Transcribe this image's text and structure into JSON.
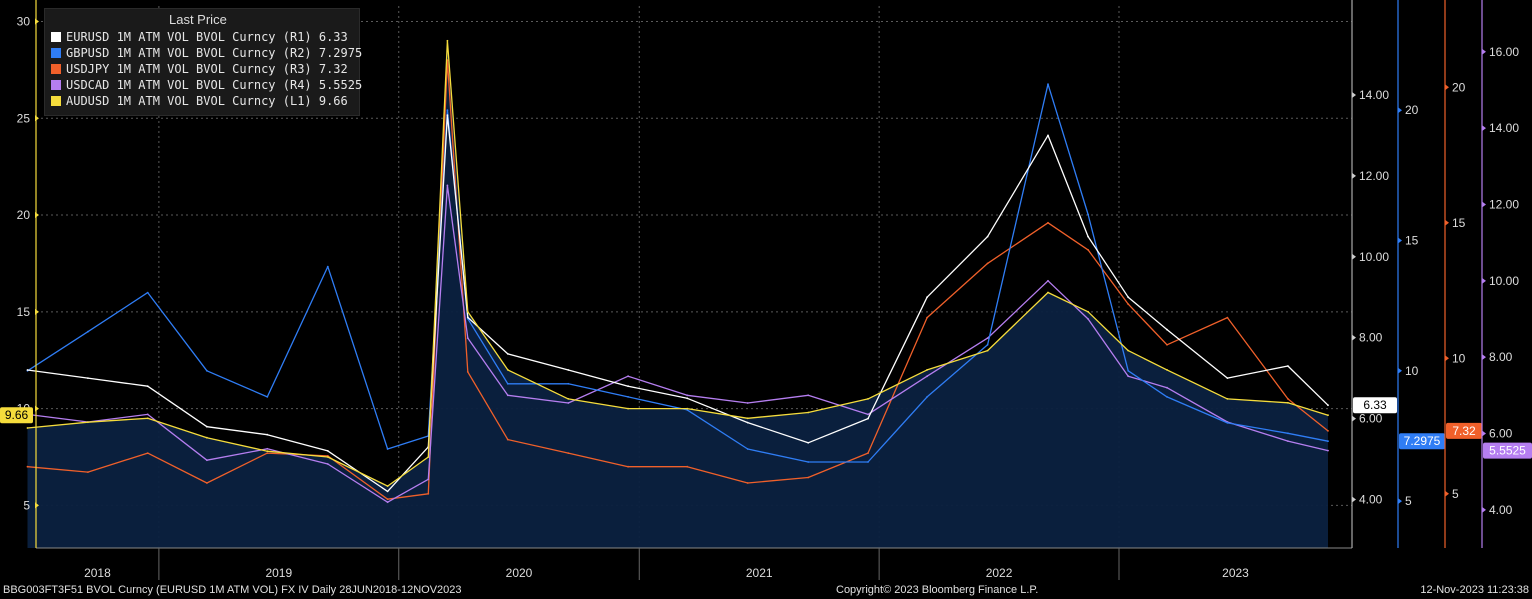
{
  "chart_data": {
    "type": "line",
    "legend": {
      "title": "Last Price",
      "placement": "top-left",
      "entries": [
        {
          "label": "EURUSD 1M ATM VOL BVOL Curncy  (R1) 6.33",
          "color": "#ffffff"
        },
        {
          "label": "GBPUSD 1M ATM VOL BVOL Curncy  (R2) 7.2975",
          "color": "#2f7df5"
        },
        {
          "label": "USDJPY 1M ATM VOL BVOL Curncy  (R3) 7.32",
          "color": "#f0602a"
        },
        {
          "label": "USDCAD 1M ATM VOL BVOL Curncy  (R4) 5.5525",
          "color": "#b57ef0"
        },
        {
          "label": "AUDUSD 1M ATM VOL BVOL Curncy  (L1) 9.66",
          "color": "#f5dc3c"
        }
      ]
    },
    "x": [
      "2018-06",
      "2018-09",
      "2018-12",
      "2019-03",
      "2019-06",
      "2019-09",
      "2019-12",
      "2020-02",
      "2020-03",
      "2020-04",
      "2020-06",
      "2020-09",
      "2020-12",
      "2021-03",
      "2021-06",
      "2021-09",
      "2021-12",
      "2022-03",
      "2022-06",
      "2022-09",
      "2022-11",
      "2023-01",
      "2023-03",
      "2023-06",
      "2023-09",
      "2023-11"
    ],
    "x_ticks": [
      "2018",
      "2019",
      "2020",
      "2021",
      "2022",
      "2023"
    ],
    "series": [
      {
        "name": "AUDUSD 1M ATM VOL BVOL Curncy",
        "axis": "L1",
        "color": "#f5dc3c",
        "values": [
          9.0,
          9.3,
          9.5,
          8.5,
          7.8,
          7.5,
          6.0,
          7.5,
          29.0,
          15.0,
          12.0,
          10.5,
          10.0,
          10.0,
          9.5,
          9.8,
          10.5,
          12.0,
          13.0,
          16.0,
          15.0,
          13.0,
          12.0,
          10.5,
          10.3,
          9.66
        ]
      },
      {
        "name": "EURUSD 1M ATM VOL BVOL Curncy",
        "axis": "R1",
        "color": "#ffffff",
        "values": [
          7.2,
          7.0,
          6.8,
          5.8,
          5.6,
          5.2,
          4.2,
          5.3,
          13.5,
          8.5,
          7.6,
          7.2,
          6.8,
          6.5,
          5.9,
          5.4,
          6.0,
          9.0,
          10.5,
          13.0,
          10.5,
          9.0,
          8.2,
          7.0,
          7.3,
          6.33
        ]
      },
      {
        "name": "GBPUSD 1M ATM VOL BVOL Curncy",
        "axis": "R2",
        "color": "#2f7df5",
        "values": [
          10.0,
          11.5,
          13.0,
          10.0,
          9.0,
          14.0,
          7.0,
          7.5,
          20.0,
          12.0,
          9.5,
          9.5,
          9.0,
          8.5,
          7.0,
          6.5,
          6.5,
          9.0,
          11.0,
          21.0,
          16.0,
          10.0,
          9.0,
          8.0,
          7.6,
          7.2975
        ]
      },
      {
        "name": "USDJPY 1M ATM VOL BVOL Curncy",
        "axis": "R3",
        "color": "#f0602a",
        "values": [
          6.0,
          5.8,
          6.5,
          5.4,
          6.5,
          6.4,
          4.8,
          5.0,
          21.0,
          9.5,
          7.0,
          6.5,
          6.0,
          6.0,
          5.4,
          5.6,
          6.5,
          11.5,
          13.5,
          15.0,
          14.0,
          12.0,
          10.5,
          11.5,
          8.5,
          7.32
        ]
      },
      {
        "name": "USDCAD 1M ATM VOL BVOL Curncy",
        "axis": "R4",
        "color": "#b57ef0",
        "values": [
          6.5,
          6.3,
          6.5,
          5.3,
          5.6,
          5.2,
          4.2,
          4.8,
          12.5,
          8.5,
          7.0,
          6.8,
          7.5,
          7.0,
          6.8,
          7.0,
          6.5,
          7.5,
          8.5,
          10.0,
          9.0,
          7.5,
          7.2,
          6.3,
          5.8,
          5.5525
        ]
      }
    ],
    "axes": {
      "L1": {
        "ticks": [
          "5",
          "10",
          "15",
          "20",
          "25",
          "30"
        ],
        "range": [
          2.8,
          30.8
        ],
        "last": "9.66",
        "color": "#f5dc3c"
      },
      "R1": {
        "ticks": [
          "4.00",
          "6.00",
          "8.00",
          "10.00",
          "12.00",
          "14.00"
        ],
        "range": [
          2.8,
          16.2
        ],
        "last": "6.33",
        "color": "#ffffff"
      },
      "R2": {
        "ticks": [
          "5",
          "10",
          "15",
          "20"
        ],
        "range": [
          3.2,
          24.0
        ],
        "last": "7.2975",
        "color": "#2f7df5"
      },
      "R3": {
        "ticks": [
          "5",
          "10",
          "15",
          "20"
        ],
        "range": [
          3.0,
          23.0
        ],
        "last": "7.32",
        "color": "#f0602a"
      },
      "R4": {
        "ticks": [
          "4.00",
          "6.00",
          "8.00",
          "10.00",
          "12.00",
          "14.00",
          "16.00"
        ],
        "range": [
          3.0,
          17.2
        ],
        "last": "5.5525",
        "color": "#b57ef0"
      }
    }
  },
  "footer": {
    "left": "BBG003FT3F51 BVOL Curncy (EURUSD 1M ATM VOL) FX IV  Daily 28JUN2018-12NOV2023",
    "center": "Copyright© 2023 Bloomberg Finance L.P.",
    "right": "12-Nov-2023 11:23:38"
  }
}
